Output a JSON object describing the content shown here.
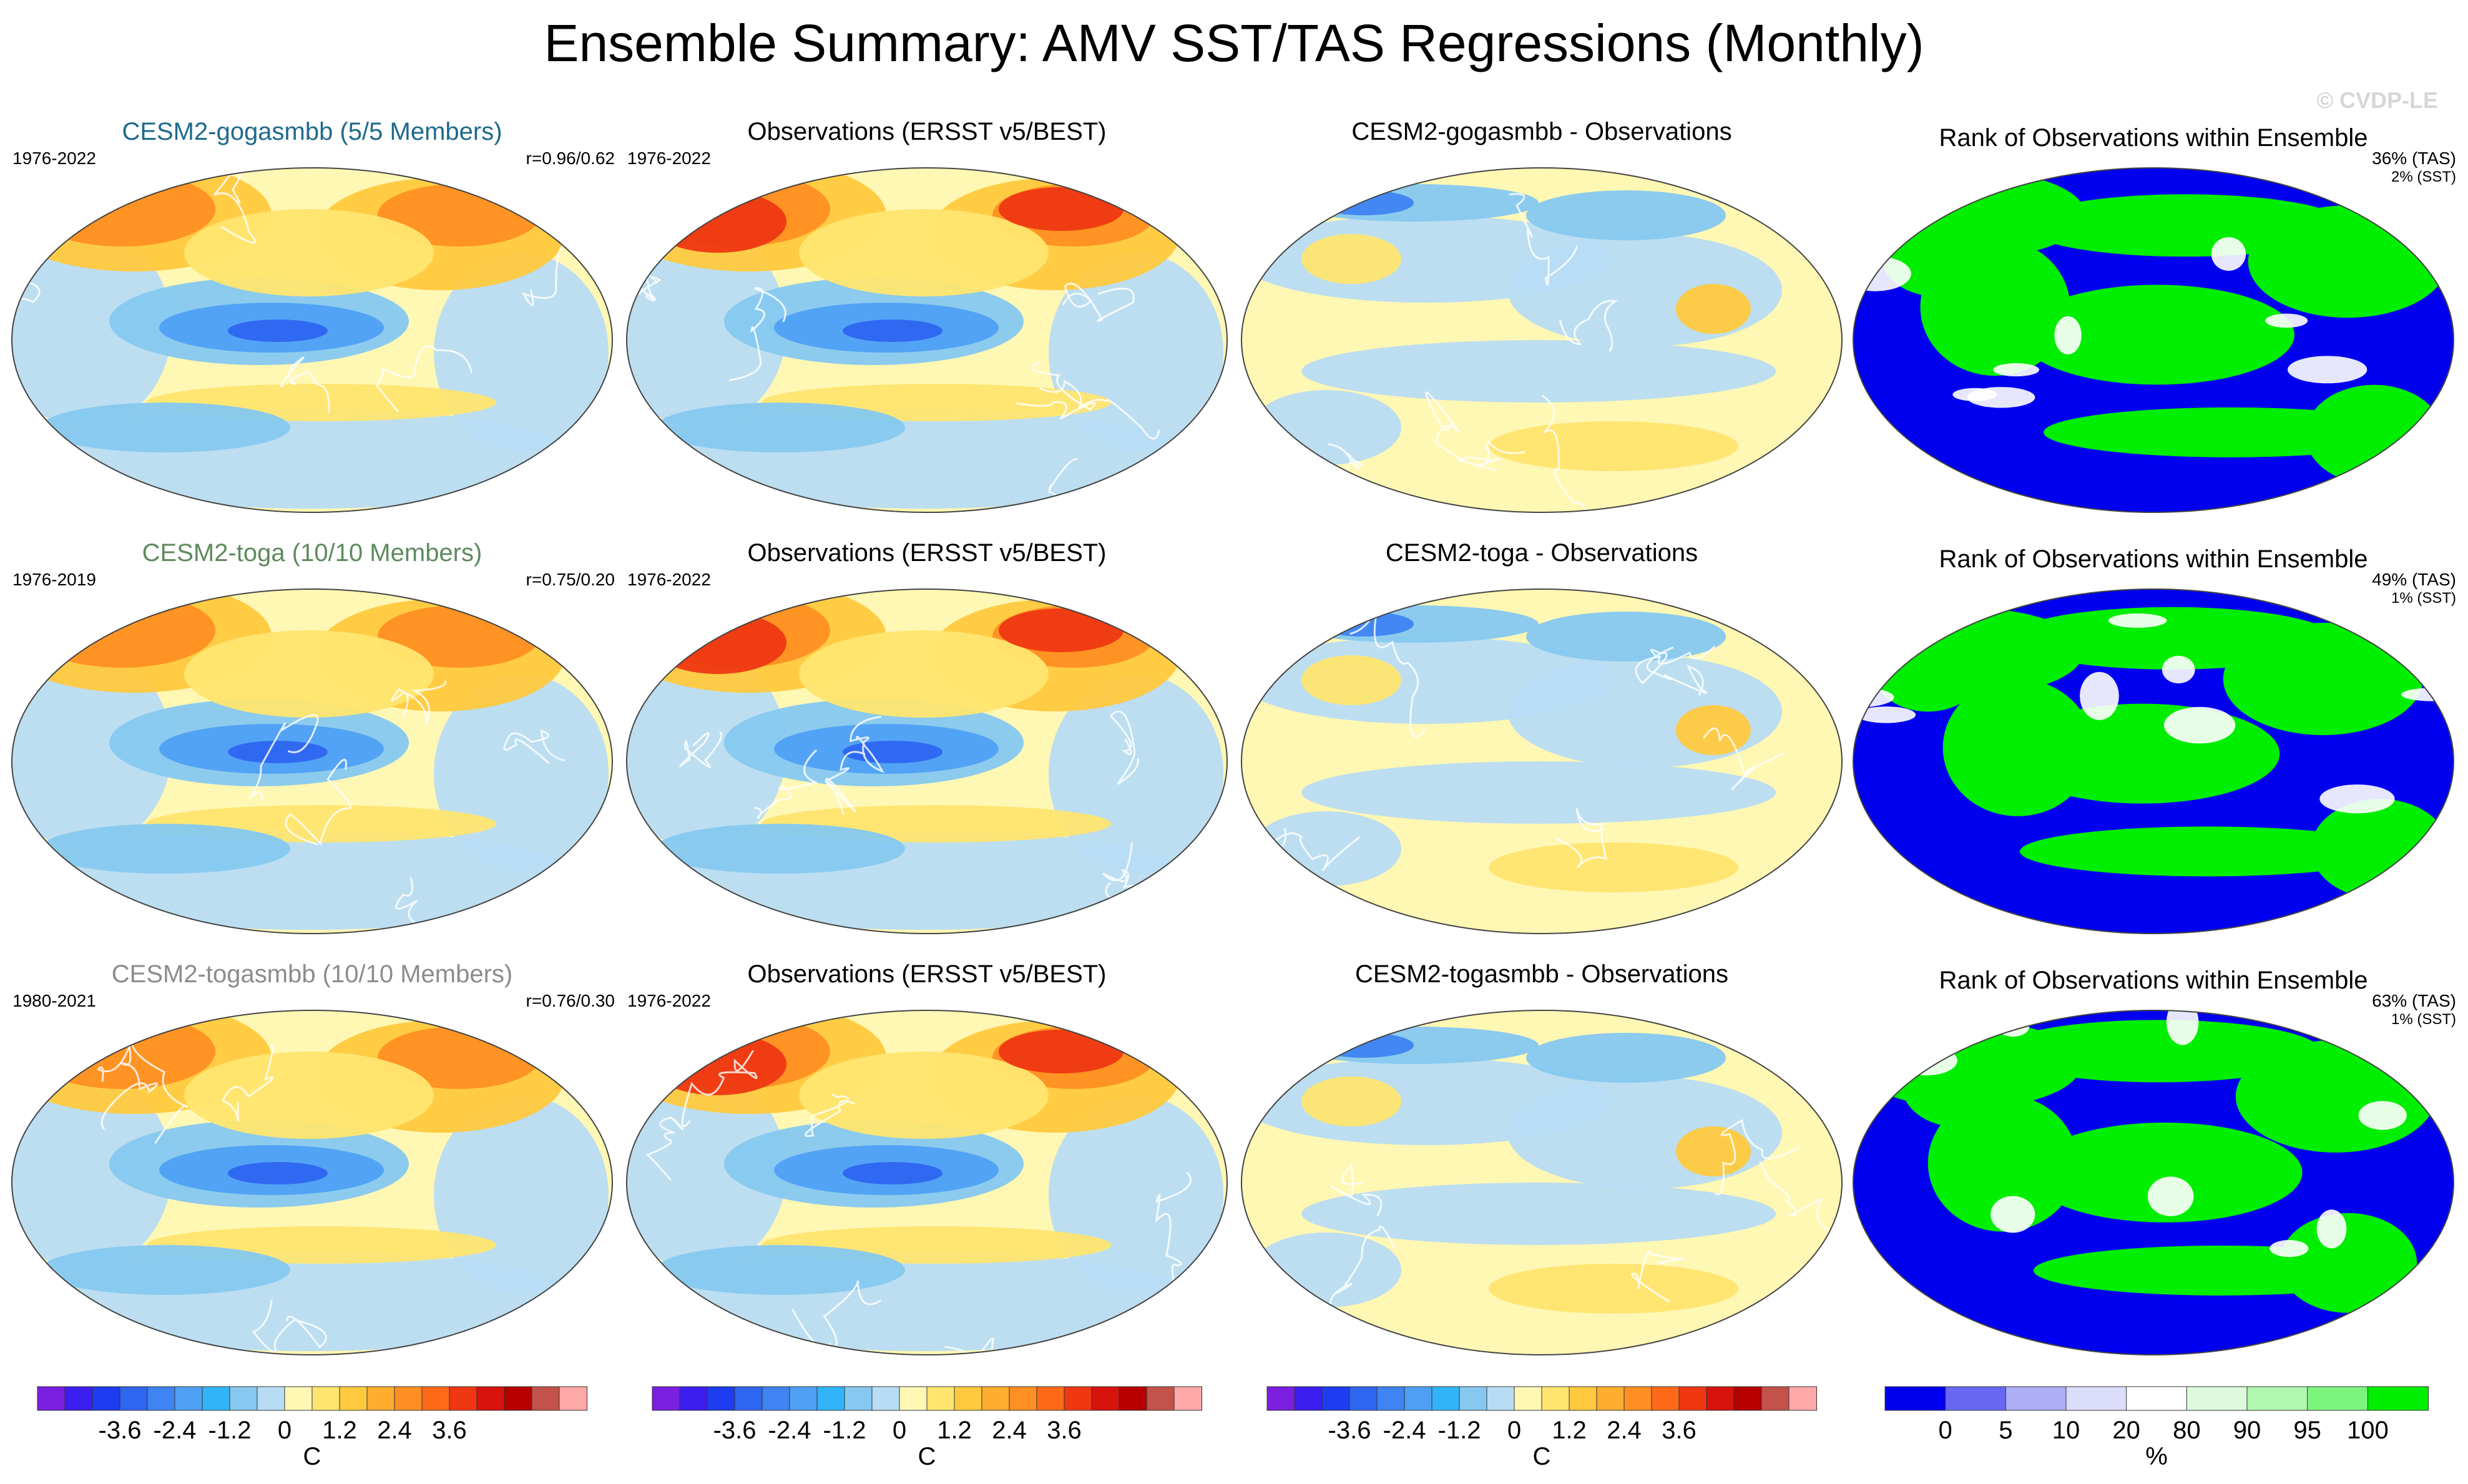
{
  "title": "Ensemble Summary: AMV SST/TAS Regressions (Monthly)",
  "watermark": "© CVDP-LE",
  "rows": [
    {
      "model": {
        "title": "CESM2-gogasmbb (5/5 Members)",
        "title_color": "#1f6a8a",
        "years": "1976-2022",
        "corr": "r=0.96/0.62"
      },
      "obs": {
        "title": "Observations (ERSST v5/BEST)",
        "years": "1976-2022"
      },
      "diff": {
        "title": "CESM2-gogasmbb - Observations"
      },
      "rank": {
        "title": "Rank of Observations within Ensemble",
        "tas": "36% (TAS)",
        "sst": "2% (SST)"
      }
    },
    {
      "model": {
        "title": "CESM2-toga (10/10 Members)",
        "title_color": "#5e8a5e",
        "years": "1976-2019",
        "corr": "r=0.75/0.20"
      },
      "obs": {
        "title": "Observations (ERSST v5/BEST)",
        "years": "1976-2022"
      },
      "diff": {
        "title": "CESM2-toga - Observations"
      },
      "rank": {
        "title": "Rank of Observations within Ensemble",
        "tas": "49% (TAS)",
        "sst": "1% (SST)"
      }
    },
    {
      "model": {
        "title": "CESM2-togasmbb (10/10 Members)",
        "title_color": "#8c8c8c",
        "years": "1980-2021",
        "corr": "r=0.76/0.30"
      },
      "obs": {
        "title": "Observations (ERSST v5/BEST)",
        "years": "1976-2022"
      },
      "diff": {
        "title": "CESM2-togasmbb - Observations"
      },
      "rank": {
        "title": "Rank of Observations within Ensemble",
        "tas": "63% (TAS)",
        "sst": "1% (SST)"
      }
    }
  ],
  "colorbars": {
    "temperature": {
      "colors": [
        "#7a1fe0",
        "#3c1ef0",
        "#1e3cf0",
        "#2e66f0",
        "#3f84f2",
        "#4fa0f5",
        "#31b4fa",
        "#86c8f0",
        "#b8dcf3",
        "#fff7b4",
        "#ffe570",
        "#ffc93e",
        "#ffad2e",
        "#ff8f22",
        "#ff6a18",
        "#ef3712",
        "#d8120c",
        "#b60000",
        "#c2524a",
        "#ffa8a8"
      ],
      "ticks": [
        "-3.6",
        "-2.4",
        "-1.2",
        "0",
        "1.2",
        "2.4",
        "3.6"
      ],
      "unit": "C"
    },
    "rank": {
      "colors": [
        "#0000ee",
        "#6868f5",
        "#aeaef7",
        "#dcdcfb",
        "#ffffff",
        "#ddfadd",
        "#b0f7b0",
        "#7cf47c",
        "#00ee00"
      ],
      "ticks": [
        "0",
        "5",
        "10",
        "20",
        "80",
        "90",
        "95",
        "100"
      ],
      "unit": "%"
    }
  }
}
